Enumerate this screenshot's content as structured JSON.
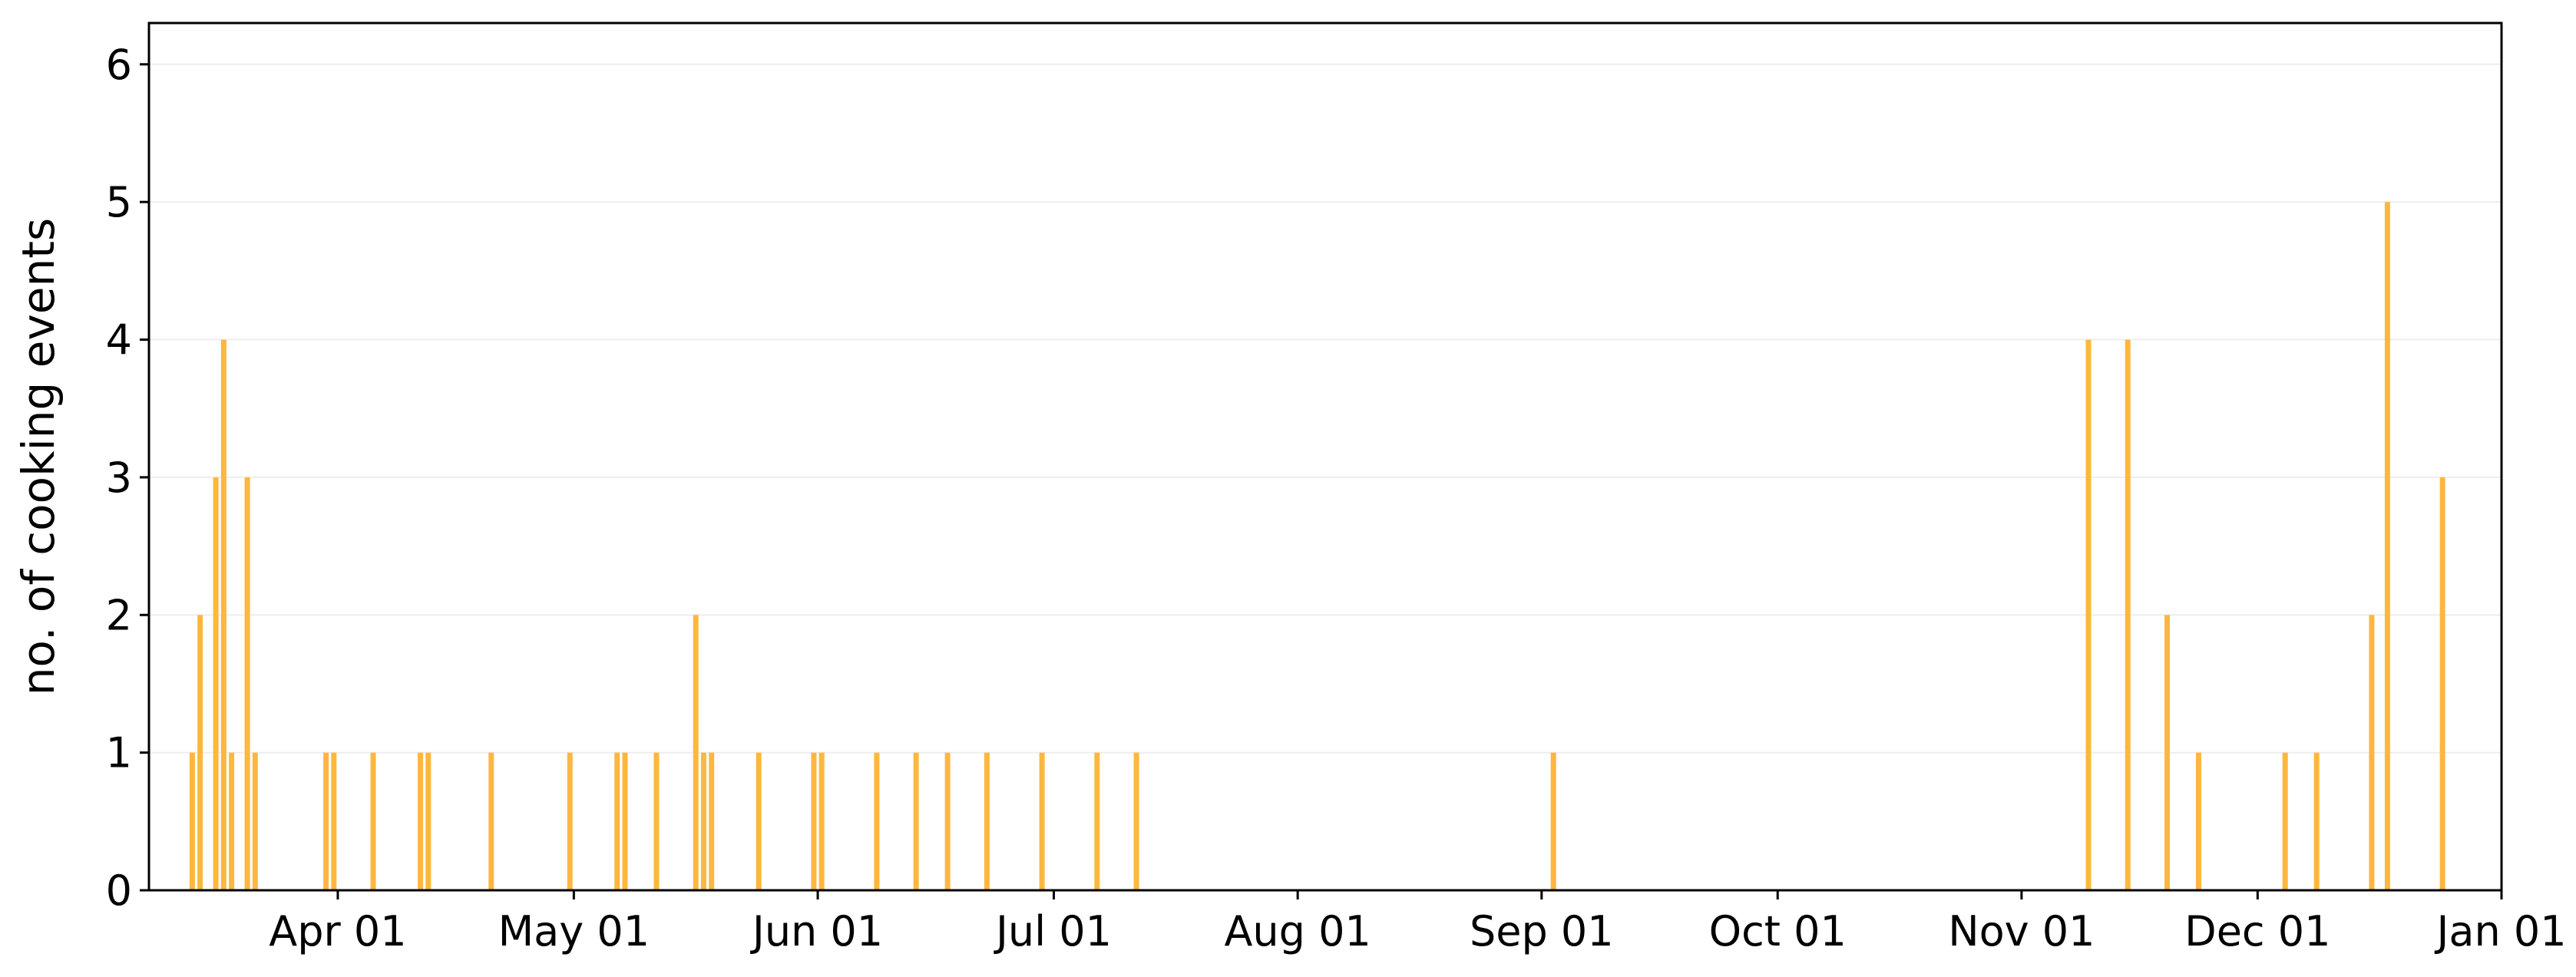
{
  "chart_data": {
    "type": "bar",
    "title": "",
    "xlabel": "",
    "ylabel": "no. of cooking events",
    "x_axis": "date",
    "xlim": [
      "2023-03-08",
      "2024-01-01"
    ],
    "ylim": [
      0,
      6.3
    ],
    "y_ticks": [
      0,
      1,
      2,
      3,
      4,
      5,
      6
    ],
    "x_ticks": [
      {
        "date": "2023-04-01",
        "label": "Apr 01"
      },
      {
        "date": "2023-05-01",
        "label": "May 01"
      },
      {
        "date": "2023-06-01",
        "label": "Jun 01"
      },
      {
        "date": "2023-07-01",
        "label": "Jul 01"
      },
      {
        "date": "2023-08-01",
        "label": "Aug 01"
      },
      {
        "date": "2023-09-01",
        "label": "Sep 01"
      },
      {
        "date": "2023-10-01",
        "label": "Oct 01"
      },
      {
        "date": "2023-11-01",
        "label": "Nov 01"
      },
      {
        "date": "2023-12-01",
        "label": "Dec 01"
      },
      {
        "date": "2024-01-01",
        "label": "Jan 01"
      }
    ],
    "grid": "horizontal",
    "bar_color": "#FDB73E",
    "points": [
      {
        "x": "2023-03-13",
        "y": 1
      },
      {
        "x": "2023-03-14",
        "y": 2
      },
      {
        "x": "2023-03-16",
        "y": 3
      },
      {
        "x": "2023-03-17",
        "y": 4
      },
      {
        "x": "2023-03-18",
        "y": 1
      },
      {
        "x": "2023-03-20",
        "y": 3
      },
      {
        "x": "2023-03-21",
        "y": 1
      },
      {
        "x": "2023-03-30",
        "y": 1
      },
      {
        "x": "2023-03-31",
        "y": 1
      },
      {
        "x": "2023-04-05",
        "y": 1
      },
      {
        "x": "2023-04-11",
        "y": 1
      },
      {
        "x": "2023-04-12",
        "y": 1
      },
      {
        "x": "2023-04-20",
        "y": 1
      },
      {
        "x": "2023-04-30",
        "y": 1
      },
      {
        "x": "2023-05-06",
        "y": 1
      },
      {
        "x": "2023-05-07",
        "y": 1
      },
      {
        "x": "2023-05-11",
        "y": 1
      },
      {
        "x": "2023-05-16",
        "y": 2
      },
      {
        "x": "2023-05-17",
        "y": 1
      },
      {
        "x": "2023-05-18",
        "y": 1
      },
      {
        "x": "2023-05-24",
        "y": 1
      },
      {
        "x": "2023-05-31",
        "y": 1
      },
      {
        "x": "2023-06-01",
        "y": 1
      },
      {
        "x": "2023-06-08",
        "y": 1
      },
      {
        "x": "2023-06-13",
        "y": 1
      },
      {
        "x": "2023-06-17",
        "y": 1
      },
      {
        "x": "2023-06-22",
        "y": 1
      },
      {
        "x": "2023-06-29",
        "y": 1
      },
      {
        "x": "2023-07-06",
        "y": 1
      },
      {
        "x": "2023-07-11",
        "y": 1
      },
      {
        "x": "2023-09-02",
        "y": 1
      },
      {
        "x": "2023-11-09",
        "y": 4
      },
      {
        "x": "2023-11-14",
        "y": 4
      },
      {
        "x": "2023-11-19",
        "y": 2
      },
      {
        "x": "2023-11-23",
        "y": 1
      },
      {
        "x": "2023-12-04",
        "y": 1
      },
      {
        "x": "2023-12-08",
        "y": 1
      },
      {
        "x": "2023-12-15",
        "y": 2
      },
      {
        "x": "2023-12-17",
        "y": 5
      },
      {
        "x": "2023-12-24",
        "y": 3
      }
    ]
  }
}
